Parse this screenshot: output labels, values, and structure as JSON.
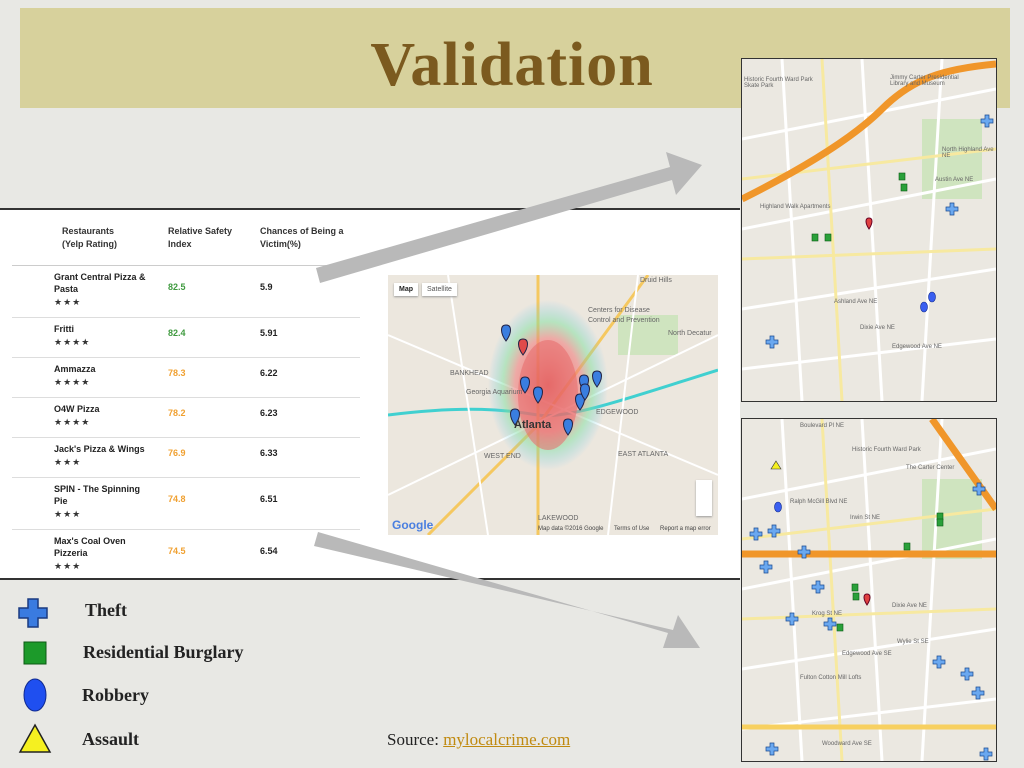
{
  "slide": {
    "title": "Validation",
    "table": {
      "headers": [
        [
          "Restaurants",
          "(Yelp Rating)"
        ],
        [
          "Relative Safety",
          "Index"
        ],
        [
          "Chances of Being a",
          "Victim(%)"
        ]
      ],
      "rows": [
        {
          "name": [
            "Grant Central Pizza &",
            "Pasta"
          ],
          "stars": "★★★",
          "safety": "82.5",
          "chance": "5.9",
          "color": "#3f9a3f"
        },
        {
          "name": [
            "Fritti"
          ],
          "stars": "★★★★",
          "safety": "82.4",
          "chance": "5.91",
          "color": "#3f9a3f"
        },
        {
          "name": [
            "Ammazza"
          ],
          "stars": "★★★★",
          "safety": "78.3",
          "chance": "6.22",
          "color": "#f0a030"
        },
        {
          "name": [
            "O4W Pizza"
          ],
          "stars": "★★★★",
          "safety": "78.2",
          "chance": "6.23",
          "color": "#f0a030"
        },
        {
          "name": [
            "Jack's Pizza & Wings"
          ],
          "stars": "★★★",
          "safety": "76.9",
          "chance": "6.33",
          "color": "#f0a030"
        },
        {
          "name": [
            "SPIN - The Spinning",
            "Pie"
          ],
          "stars": "★★★",
          "safety": "74.8",
          "chance": "6.51",
          "color": "#f0a030"
        },
        {
          "name": [
            "Max's Coal Oven",
            "Pizzeria"
          ],
          "stars": "★★★",
          "safety": "74.5",
          "chance": "6.54",
          "color": "#f0a030"
        }
      ]
    },
    "map": {
      "buttons": [
        "Map",
        "Satellite"
      ],
      "labels": [
        "Druid Hills",
        "Centers for Disease",
        "Control and Prevention",
        "North Decatur",
        "Georgia Aquarium",
        "Atlanta",
        "EDGEWOOD",
        "EAST ATLANTA",
        "WEST END",
        "LAKEWOOD",
        "BANKHEAD"
      ],
      "footer": [
        "Google",
        "Map data ©2016 Google",
        "Terms of Use",
        "Report a map error"
      ]
    },
    "map_top": {
      "labels": [
        "Historic Fourth Ward Park Skate Park",
        "Jimmy Carter Presidential Library and Museum",
        "Highland Walk Apartments",
        "Ashland Ave NE",
        "Dixie Ave NE",
        "Edgewood Ave NE",
        "Austin Ave NE",
        "North Highland Ave NE"
      ]
    },
    "map_bottom": {
      "labels": [
        "Boulevard Pl NE",
        "Historic Fourth Ward Park",
        "The Carter Center",
        "Ralph McGill Blvd NE",
        "Irwin St NE",
        "Krog St NE",
        "Dixie Ave NE",
        "Edgewood Ave SE",
        "Wylie St SE",
        "Fulton Cotton Mill Lofts",
        "Woodward Ave SE"
      ]
    },
    "legend": [
      "Theft",
      "Residential Burglary",
      "Robbery",
      "Assault"
    ],
    "source": {
      "label": "Source:",
      "link": "mylocalcrime.com"
    }
  }
}
